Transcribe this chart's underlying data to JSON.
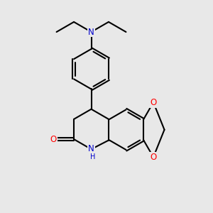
{
  "bg_color": "#e8e8e8",
  "bond_color": "#000000",
  "bond_width": 1.5,
  "dbo": 0.06,
  "N_color": "#0000cc",
  "O_color": "#ff0000",
  "fs": 8.5,
  "xlim": [
    0,
    10
  ],
  "ylim": [
    0,
    10
  ],
  "L": 0.95
}
